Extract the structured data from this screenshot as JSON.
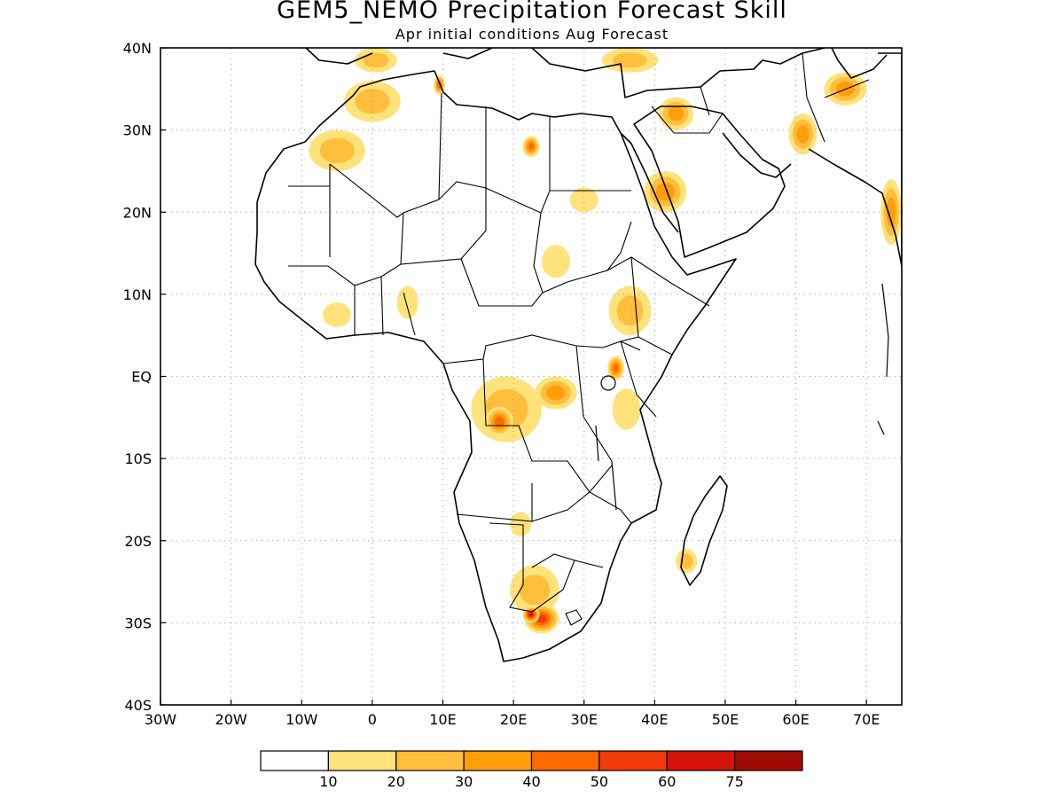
{
  "title": "GEM5_NEMO Precipitation Forecast Skill",
  "subtitle": "Apr initial conditions  Aug Forecast",
  "map": {
    "lon_range": [
      -30,
      75
    ],
    "lat_range": [
      -40,
      40
    ],
    "lon_ticks": [
      {
        "value": -30,
        "label": "30W"
      },
      {
        "value": -20,
        "label": "20W"
      },
      {
        "value": -10,
        "label": "10W"
      },
      {
        "value": 0,
        "label": "0"
      },
      {
        "value": 10,
        "label": "10E"
      },
      {
        "value": 20,
        "label": "20E"
      },
      {
        "value": 30,
        "label": "30E"
      },
      {
        "value": 40,
        "label": "40E"
      },
      {
        "value": 50,
        "label": "50E"
      },
      {
        "value": 60,
        "label": "60E"
      },
      {
        "value": 70,
        "label": "70E"
      }
    ],
    "lat_ticks": [
      {
        "value": 40,
        "label": "40N"
      },
      {
        "value": 30,
        "label": "30N"
      },
      {
        "value": 20,
        "label": "20N"
      },
      {
        "value": 10,
        "label": "10N"
      },
      {
        "value": 0,
        "label": "EQ"
      },
      {
        "value": -10,
        "label": "10S"
      },
      {
        "value": -20,
        "label": "20S"
      },
      {
        "value": -30,
        "label": "30S"
      },
      {
        "value": -40,
        "label": "40S"
      }
    ],
    "grid": "dotted",
    "coastline_color": "#000000"
  },
  "colorbar": {
    "colors": [
      "#ffffff",
      "#ffe27a",
      "#ffbe3c",
      "#ff9e0a",
      "#ff6a00",
      "#f23a0a",
      "#d41408",
      "#a00a05"
    ],
    "labels": [
      "10",
      "20",
      "30",
      "40",
      "50",
      "60",
      "75"
    ]
  },
  "skill_regions": [
    {
      "lon": 19,
      "lat": -4,
      "rx": 5,
      "ry": 4,
      "level": 2
    },
    {
      "lon": 26,
      "lat": -2,
      "rx": 3,
      "ry": 2,
      "level": 3
    },
    {
      "lon": 18,
      "lat": -5.5,
      "rx": 2,
      "ry": 1.8,
      "level": 4
    },
    {
      "lon": 36.5,
      "lat": 8,
      "rx": 3,
      "ry": 3,
      "level": 2
    },
    {
      "lon": 34.5,
      "lat": 1,
      "rx": 1.2,
      "ry": 1.5,
      "level": 4
    },
    {
      "lon": 36,
      "lat": -4,
      "rx": 2,
      "ry": 2.5,
      "level": 1
    },
    {
      "lon": 23,
      "lat": -26,
      "rx": 3.5,
      "ry": 3,
      "level": 2
    },
    {
      "lon": 24,
      "lat": -29.5,
      "rx": 2.5,
      "ry": 1.8,
      "level": 5
    },
    {
      "lon": 22.5,
      "lat": -29,
      "rx": 1.2,
      "ry": 1,
      "level": 6
    },
    {
      "lon": 44.5,
      "lat": -22.5,
      "rx": 1.5,
      "ry": 1.5,
      "level": 2
    },
    {
      "lon": 21,
      "lat": -18,
      "rx": 1.5,
      "ry": 1.5,
      "level": 1
    },
    {
      "lon": -5,
      "lat": 27.5,
      "rx": 4,
      "ry": 2.5,
      "level": 2
    },
    {
      "lon": 0,
      "lat": 33.5,
      "rx": 4,
      "ry": 2.5,
      "level": 2
    },
    {
      "lon": 22.5,
      "lat": 28,
      "rx": 1.2,
      "ry": 1.3,
      "level": 4
    },
    {
      "lon": 41.5,
      "lat": 22.5,
      "rx": 3,
      "ry": 2.5,
      "level": 3
    },
    {
      "lon": 43,
      "lat": 32,
      "rx": 2.5,
      "ry": 2,
      "level": 3
    },
    {
      "lon": 61,
      "lat": 29.5,
      "rx": 2,
      "ry": 2.5,
      "level": 3
    },
    {
      "lon": 67,
      "lat": 35,
      "rx": 3,
      "ry": 2,
      "level": 3
    },
    {
      "lon": 73.5,
      "lat": 20,
      "rx": 1.5,
      "ry": 4,
      "level": 3
    },
    {
      "lon": 5,
      "lat": 9,
      "rx": 1.5,
      "ry": 2,
      "level": 1
    },
    {
      "lon": -5,
      "lat": 7.5,
      "rx": 2,
      "ry": 1.5,
      "level": 1
    },
    {
      "lon": 30,
      "lat": 21.5,
      "rx": 2,
      "ry": 1.5,
      "level": 1
    },
    {
      "lon": 0.5,
      "lat": 38.5,
      "rx": 3,
      "ry": 1.5,
      "level": 2
    },
    {
      "lon": 36.5,
      "lat": 38.5,
      "rx": 4,
      "ry": 1.5,
      "level": 2
    },
    {
      "lon": 9.5,
      "lat": 35.5,
      "rx": 0.8,
      "ry": 1.2,
      "level": 4
    },
    {
      "lon": 26,
      "lat": 14,
      "rx": 2,
      "ry": 2,
      "level": 1
    }
  ]
}
